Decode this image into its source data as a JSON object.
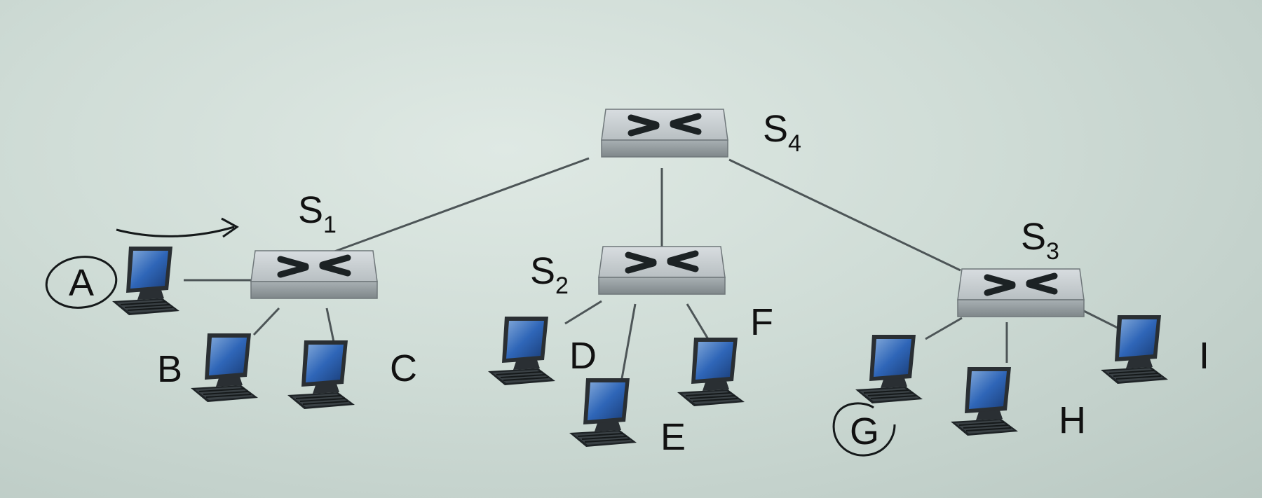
{
  "switches": [
    {
      "id": "s4",
      "name": "S",
      "sub": "4"
    },
    {
      "id": "s1",
      "name": "S",
      "sub": "1"
    },
    {
      "id": "s2",
      "name": "S",
      "sub": "2"
    },
    {
      "id": "s3",
      "name": "S",
      "sub": "3"
    }
  ],
  "hosts": [
    {
      "id": "a",
      "label": "A"
    },
    {
      "id": "b",
      "label": "B"
    },
    {
      "id": "c",
      "label": "C"
    },
    {
      "id": "d",
      "label": "D"
    },
    {
      "id": "e",
      "label": "E"
    },
    {
      "id": "f",
      "label": "F"
    },
    {
      "id": "g",
      "label": "G"
    },
    {
      "id": "h",
      "label": "H"
    },
    {
      "id": "i",
      "label": "I"
    }
  ],
  "colors": {
    "link": "#4d5557",
    "switch_top": "#c9cfd1",
    "switch_front": "#9aa2a5",
    "screen": "#2f66b8",
    "ink": "#15191a"
  }
}
